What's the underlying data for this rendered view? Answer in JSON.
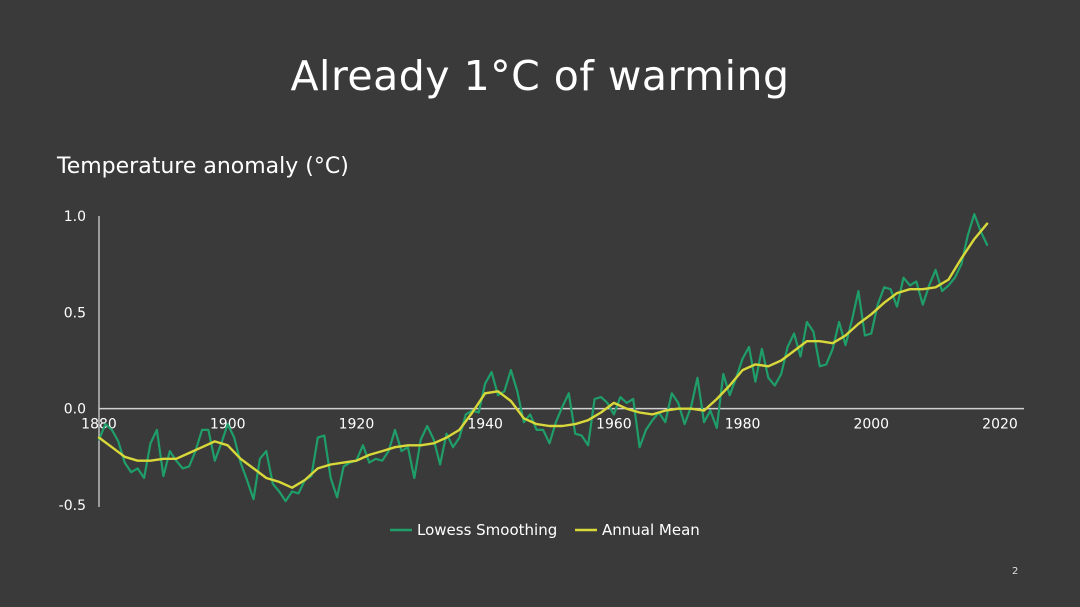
{
  "slide": {
    "title": "Already 1°C of warming",
    "number": "2"
  },
  "chart_data": {
    "type": "line",
    "title": "Temperature anomaly (°C)",
    "xlabel": "",
    "ylabel": "",
    "xlim": [
      1880,
      2020
    ],
    "ylim": [
      -0.5,
      1.0
    ],
    "x_ticks": [
      "1880",
      "1900",
      "1920",
      "1940",
      "1960",
      "1980",
      "2000",
      "2020"
    ],
    "y_ticks": [
      "1.0",
      "0.5",
      "0.0",
      "-0.5"
    ],
    "grid": false,
    "legend": "bottom",
    "colors": {
      "Lowess Smoothing": "#1f9e6a",
      "Annual Mean": "#d8d83a"
    },
    "series": [
      {
        "name": "Lowess Smoothing",
        "x": [
          1880,
          1881,
          1882,
          1883,
          1884,
          1885,
          1886,
          1887,
          1888,
          1889,
          1890,
          1891,
          1892,
          1893,
          1894,
          1895,
          1896,
          1897,
          1898,
          1899,
          1900,
          1901,
          1902,
          1903,
          1904,
          1905,
          1906,
          1907,
          1908,
          1909,
          1910,
          1911,
          1912,
          1913,
          1914,
          1915,
          1916,
          1917,
          1918,
          1919,
          1920,
          1921,
          1922,
          1923,
          1924,
          1925,
          1926,
          1927,
          1928,
          1929,
          1930,
          1931,
          1932,
          1933,
          1934,
          1935,
          1936,
          1937,
          1938,
          1939,
          1940,
          1941,
          1942,
          1943,
          1944,
          1945,
          1946,
          1947,
          1948,
          1949,
          1950,
          1951,
          1952,
          1953,
          1954,
          1955,
          1956,
          1957,
          1958,
          1959,
          1960,
          1961,
          1962,
          1963,
          1964,
          1965,
          1966,
          1967,
          1968,
          1969,
          1970,
          1971,
          1972,
          1973,
          1974,
          1975,
          1976,
          1977,
          1978,
          1979,
          1980,
          1981,
          1982,
          1983,
          1984,
          1985,
          1986,
          1987,
          1988,
          1989,
          1990,
          1991,
          1992,
          1993,
          1994,
          1995,
          1996,
          1997,
          1998,
          1999,
          2000,
          2001,
          2002,
          2003,
          2004,
          2005,
          2006,
          2007,
          2008,
          2009,
          2010,
          2011,
          2012,
          2013,
          2014,
          2015,
          2016,
          2017,
          2018
        ],
        "y": [
          -0.16,
          -0.08,
          -0.11,
          -0.17,
          -0.28,
          -0.33,
          -0.31,
          -0.36,
          -0.18,
          -0.11,
          -0.35,
          -0.22,
          -0.27,
          -0.31,
          -0.3,
          -0.22,
          -0.11,
          -0.11,
          -0.27,
          -0.18,
          -0.08,
          -0.15,
          -0.28,
          -0.37,
          -0.47,
          -0.26,
          -0.22,
          -0.39,
          -0.43,
          -0.48,
          -0.43,
          -0.44,
          -0.37,
          -0.35,
          -0.15,
          -0.14,
          -0.36,
          -0.46,
          -0.3,
          -0.28,
          -0.27,
          -0.19,
          -0.28,
          -0.26,
          -0.27,
          -0.22,
          -0.11,
          -0.22,
          -0.2,
          -0.36,
          -0.16,
          -0.09,
          -0.16,
          -0.29,
          -0.13,
          -0.2,
          -0.15,
          -0.03,
          -0.01,
          -0.02,
          0.13,
          0.19,
          0.07,
          0.09,
          0.2,
          0.09,
          -0.07,
          -0.03,
          -0.11,
          -0.11,
          -0.18,
          -0.07,
          0.01,
          0.08,
          -0.13,
          -0.14,
          -0.19,
          0.05,
          0.06,
          0.03,
          -0.03,
          0.06,
          0.03,
          0.05,
          -0.2,
          -0.11,
          -0.06,
          -0.02,
          -0.07,
          0.08,
          0.03,
          -0.08,
          0.01,
          0.16,
          -0.07,
          -0.01,
          -0.1,
          0.18,
          0.07,
          0.16,
          0.26,
          0.32,
          0.14,
          0.31,
          0.16,
          0.12,
          0.18,
          0.32,
          0.39,
          0.27,
          0.45,
          0.4,
          0.22,
          0.23,
          0.31,
          0.45,
          0.33,
          0.46,
          0.61,
          0.38,
          0.39,
          0.54,
          0.63,
          0.62,
          0.53,
          0.68,
          0.64,
          0.66,
          0.54,
          0.64,
          0.72,
          0.61,
          0.64,
          0.68,
          0.75,
          0.9,
          1.01,
          0.92,
          0.85
        ]
      },
      {
        "name": "Annual Mean",
        "x": [
          1880,
          1882,
          1884,
          1886,
          1888,
          1890,
          1892,
          1894,
          1896,
          1898,
          1900,
          1902,
          1904,
          1906,
          1908,
          1910,
          1912,
          1914,
          1916,
          1918,
          1920,
          1922,
          1924,
          1926,
          1928,
          1930,
          1932,
          1934,
          1936,
          1938,
          1940,
          1942,
          1944,
          1946,
          1948,
          1950,
          1952,
          1954,
          1956,
          1958,
          1960,
          1962,
          1964,
          1966,
          1968,
          1970,
          1972,
          1974,
          1976,
          1978,
          1980,
          1982,
          1984,
          1986,
          1988,
          1990,
          1992,
          1994,
          1996,
          1998,
          2000,
          2002,
          2004,
          2006,
          2008,
          2010,
          2012,
          2014,
          2016,
          2018
        ],
        "y": [
          -0.15,
          -0.2,
          -0.25,
          -0.27,
          -0.27,
          -0.26,
          -0.26,
          -0.23,
          -0.2,
          -0.17,
          -0.19,
          -0.26,
          -0.31,
          -0.36,
          -0.38,
          -0.41,
          -0.37,
          -0.31,
          -0.29,
          -0.28,
          -0.27,
          -0.24,
          -0.22,
          -0.2,
          -0.19,
          -0.19,
          -0.18,
          -0.15,
          -0.11,
          -0.02,
          0.08,
          0.09,
          0.04,
          -0.05,
          -0.08,
          -0.09,
          -0.09,
          -0.08,
          -0.06,
          -0.02,
          0.03,
          0.0,
          -0.02,
          -0.03,
          -0.01,
          0.0,
          0.0,
          -0.01,
          0.05,
          0.12,
          0.2,
          0.23,
          0.22,
          0.25,
          0.3,
          0.35,
          0.35,
          0.34,
          0.38,
          0.44,
          0.49,
          0.55,
          0.6,
          0.62,
          0.62,
          0.63,
          0.67,
          0.78,
          0.88,
          0.96
        ]
      }
    ]
  }
}
